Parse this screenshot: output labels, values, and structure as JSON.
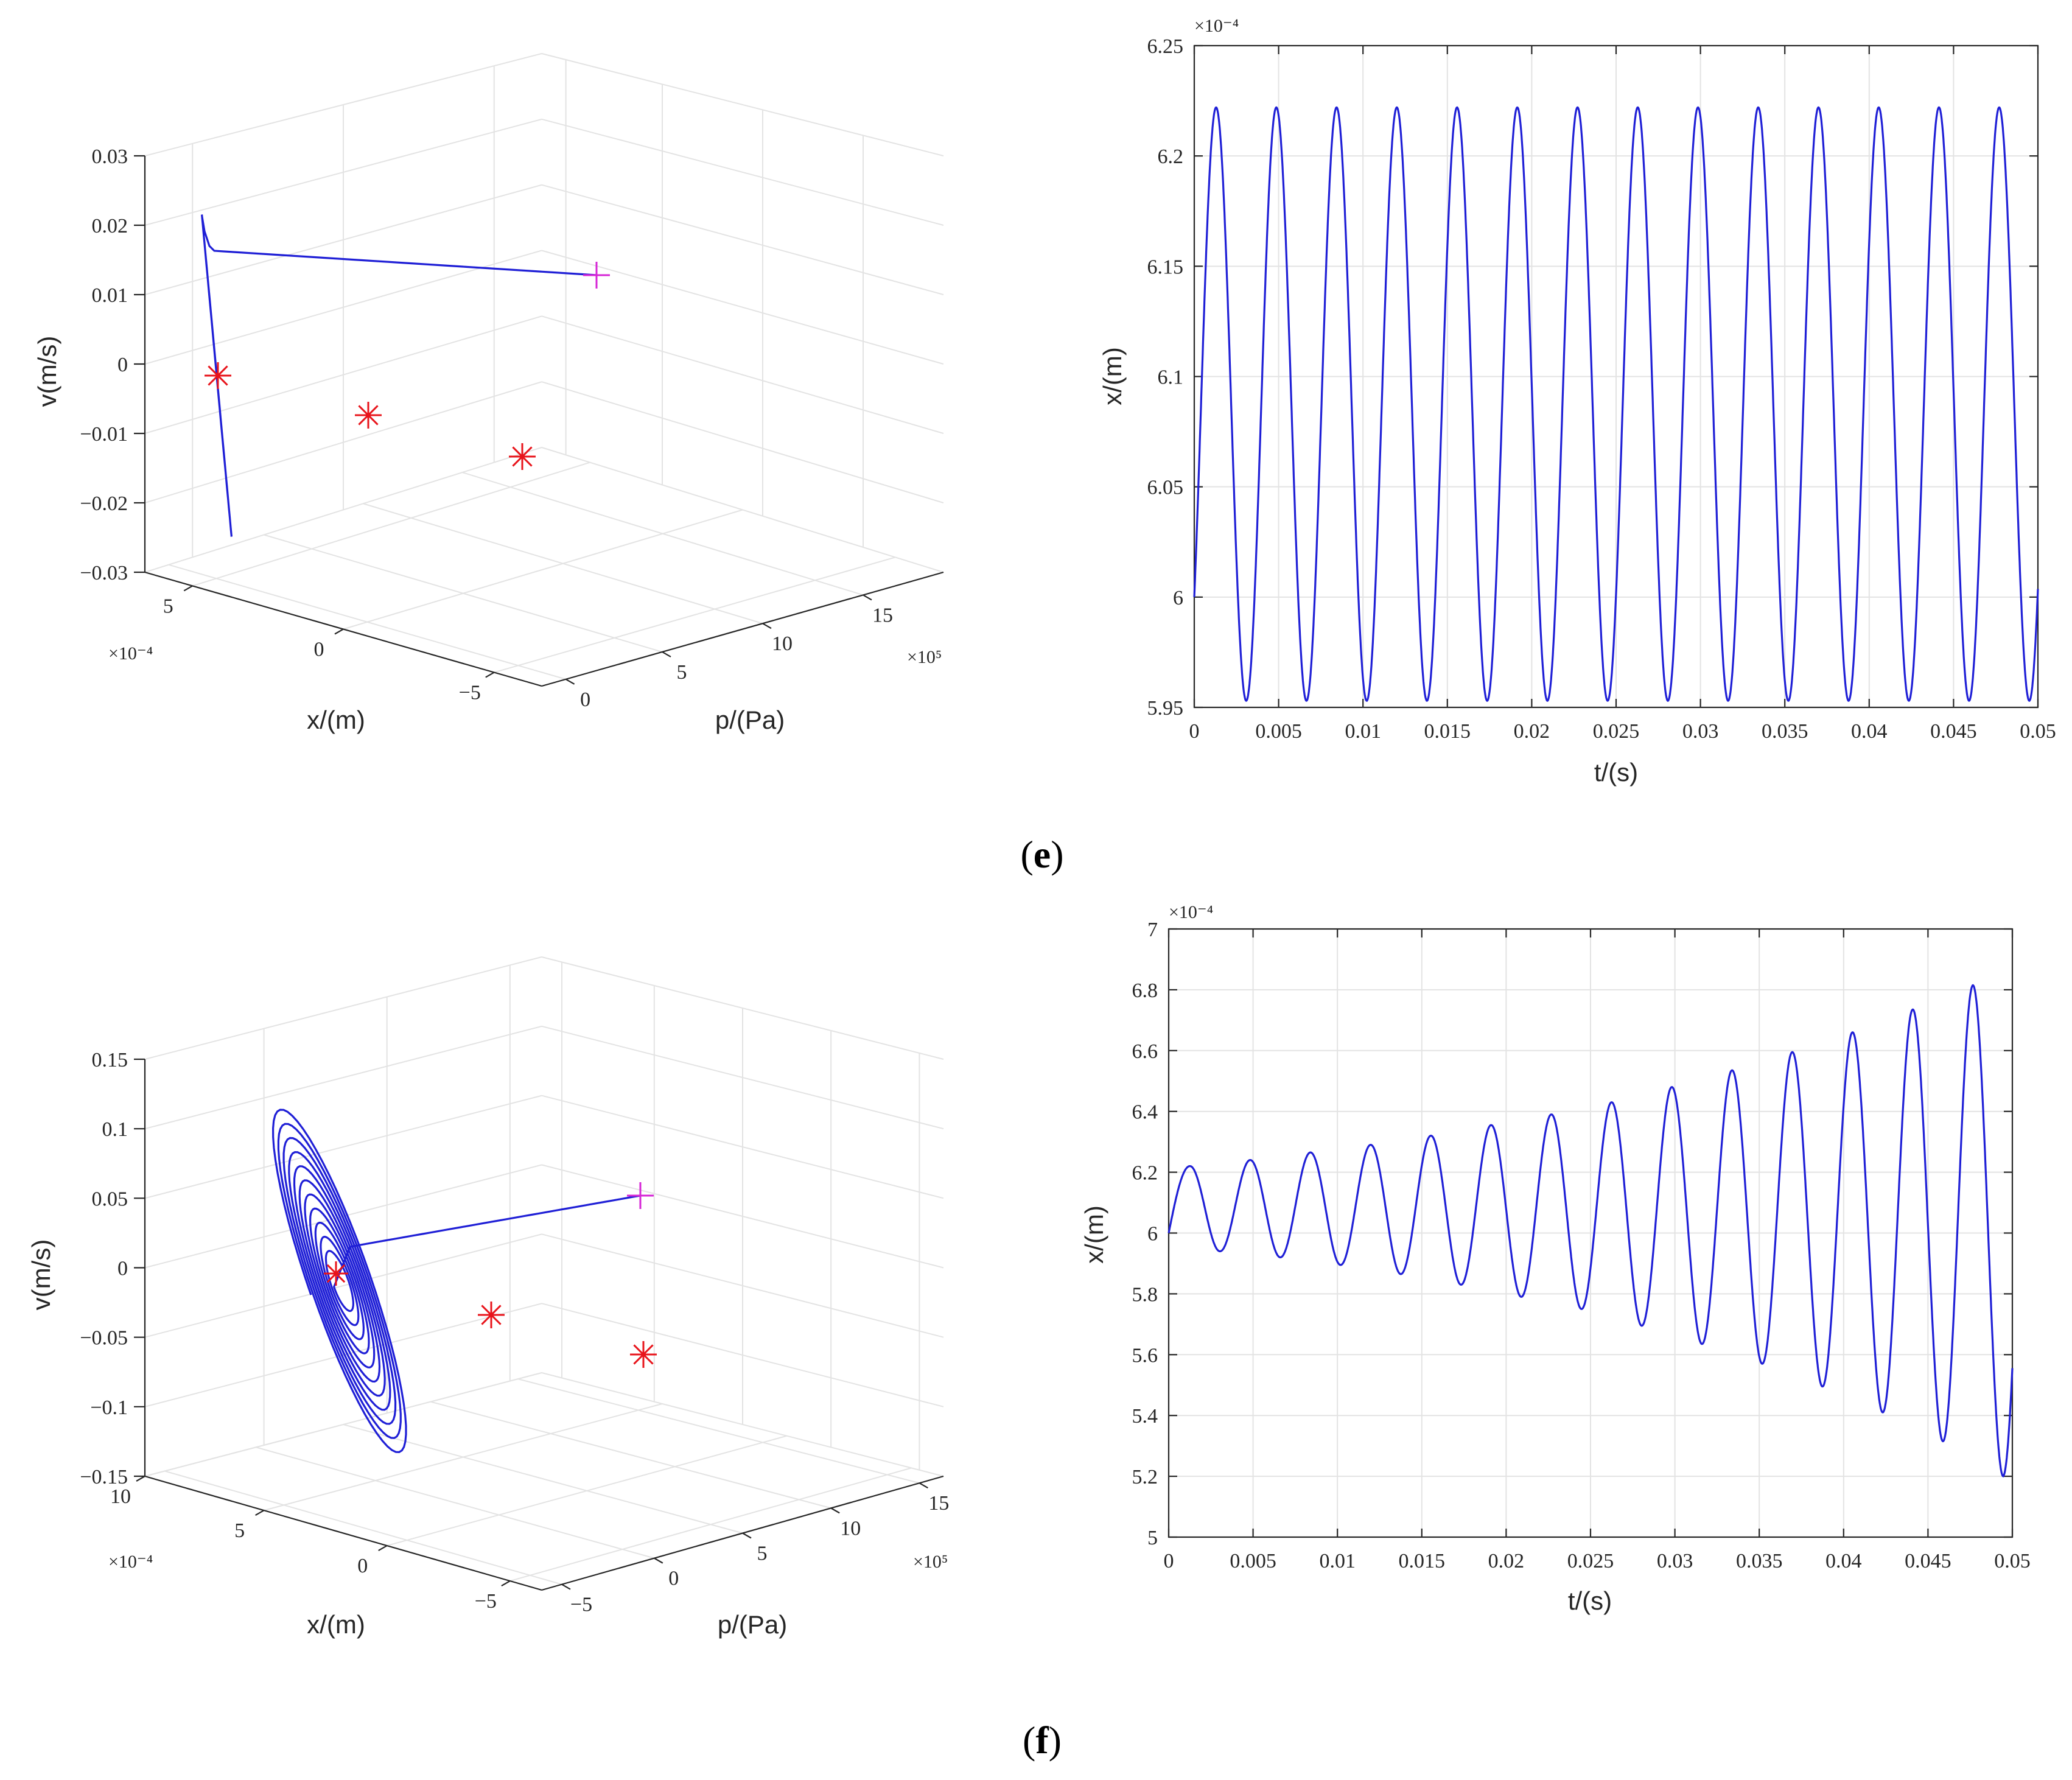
{
  "captions": {
    "e": "e",
    "f": "f"
  },
  "chart_data": [
    {
      "id": "e3d",
      "type": "line3d",
      "panel": "e",
      "xlabel": "x/(m)",
      "ylabel": "p/(Pa)",
      "zlabel": "v(m/s)",
      "x_multiplier": "×10⁻⁴",
      "y_multiplier": "×10⁵",
      "x_ticks": [
        "5",
        "0",
        "−5"
      ],
      "y_ticks": [
        "0",
        "5",
        "10",
        "15"
      ],
      "z_ticks": [
        "0.03",
        "0.02",
        "0.01",
        "0",
        "−0.01",
        "−0.02",
        "−0.03"
      ],
      "equilibria_markers": 3,
      "start_marker": "+",
      "trajectory": "straight approach from start point then small elliptical limit cycle"
    },
    {
      "id": "e2d",
      "type": "line",
      "panel": "e",
      "xlabel": "t/(s)",
      "ylabel": "x/(m)",
      "y_multiplier": "×10⁻⁴",
      "xlim": [
        0,
        0.05
      ],
      "ylim": [
        5.95,
        6.25
      ],
      "x_ticks": [
        "0",
        "0.005",
        "0.01",
        "0.015",
        "0.02",
        "0.025",
        "0.03",
        "0.035",
        "0.04",
        "0.045",
        "0.05"
      ],
      "y_ticks": [
        "5.95",
        "6",
        "6.05",
        "6.1",
        "6.15",
        "6.2",
        "6.25"
      ],
      "series": [
        {
          "name": "x(t)",
          "start": 6.0,
          "peak": 6.222,
          "trough": 5.953,
          "period": 0.00357
        }
      ]
    },
    {
      "id": "f3d",
      "type": "line3d",
      "panel": "f",
      "xlabel": "x/(m)",
      "ylabel": "p/(Pa)",
      "zlabel": "v(m/s)",
      "x_multiplier": "×10⁻⁴",
      "y_multiplier": "×10⁵",
      "x_ticks": [
        "10",
        "5",
        "0",
        "−5"
      ],
      "y_ticks": [
        "−5",
        "0",
        "5",
        "10",
        "15"
      ],
      "z_ticks": [
        "0.15",
        "0.1",
        "0.05",
        "0",
        "−0.05",
        "−0.1",
        "−0.15"
      ],
      "equilibria_markers": 3,
      "start_marker": "+",
      "trajectory": "straight approach then outward growing spiral"
    },
    {
      "id": "f2d",
      "type": "line",
      "panel": "f",
      "xlabel": "t/(s)",
      "ylabel": "x/(m)",
      "y_multiplier": "×10⁻⁴",
      "xlim": [
        0,
        0.05
      ],
      "ylim": [
        5,
        7
      ],
      "x_ticks": [
        "0",
        "0.005",
        "0.01",
        "0.015",
        "0.02",
        "0.025",
        "0.03",
        "0.035",
        "0.04",
        "0.045",
        "0.05"
      ],
      "y_ticks": [
        "5",
        "5.2",
        "5.4",
        "5.6",
        "5.8",
        "6",
        "6.2",
        "6.4",
        "6.6",
        "6.8",
        "7"
      ],
      "series": [
        {
          "name": "x(t)",
          "peaks": [
            6.22,
            6.24,
            6.265,
            6.29,
            6.32,
            6.355,
            6.39,
            6.43,
            6.48,
            6.535,
            6.595,
            6.66,
            6.735,
            6.815
          ],
          "troughs": [
            5.94,
            5.92,
            5.895,
            5.865,
            5.83,
            5.79,
            5.75,
            5.695,
            5.635,
            5.57,
            5.495,
            5.41,
            5.315,
            5.2
          ],
          "start": 6.0,
          "period": 0.00357
        }
      ]
    }
  ]
}
